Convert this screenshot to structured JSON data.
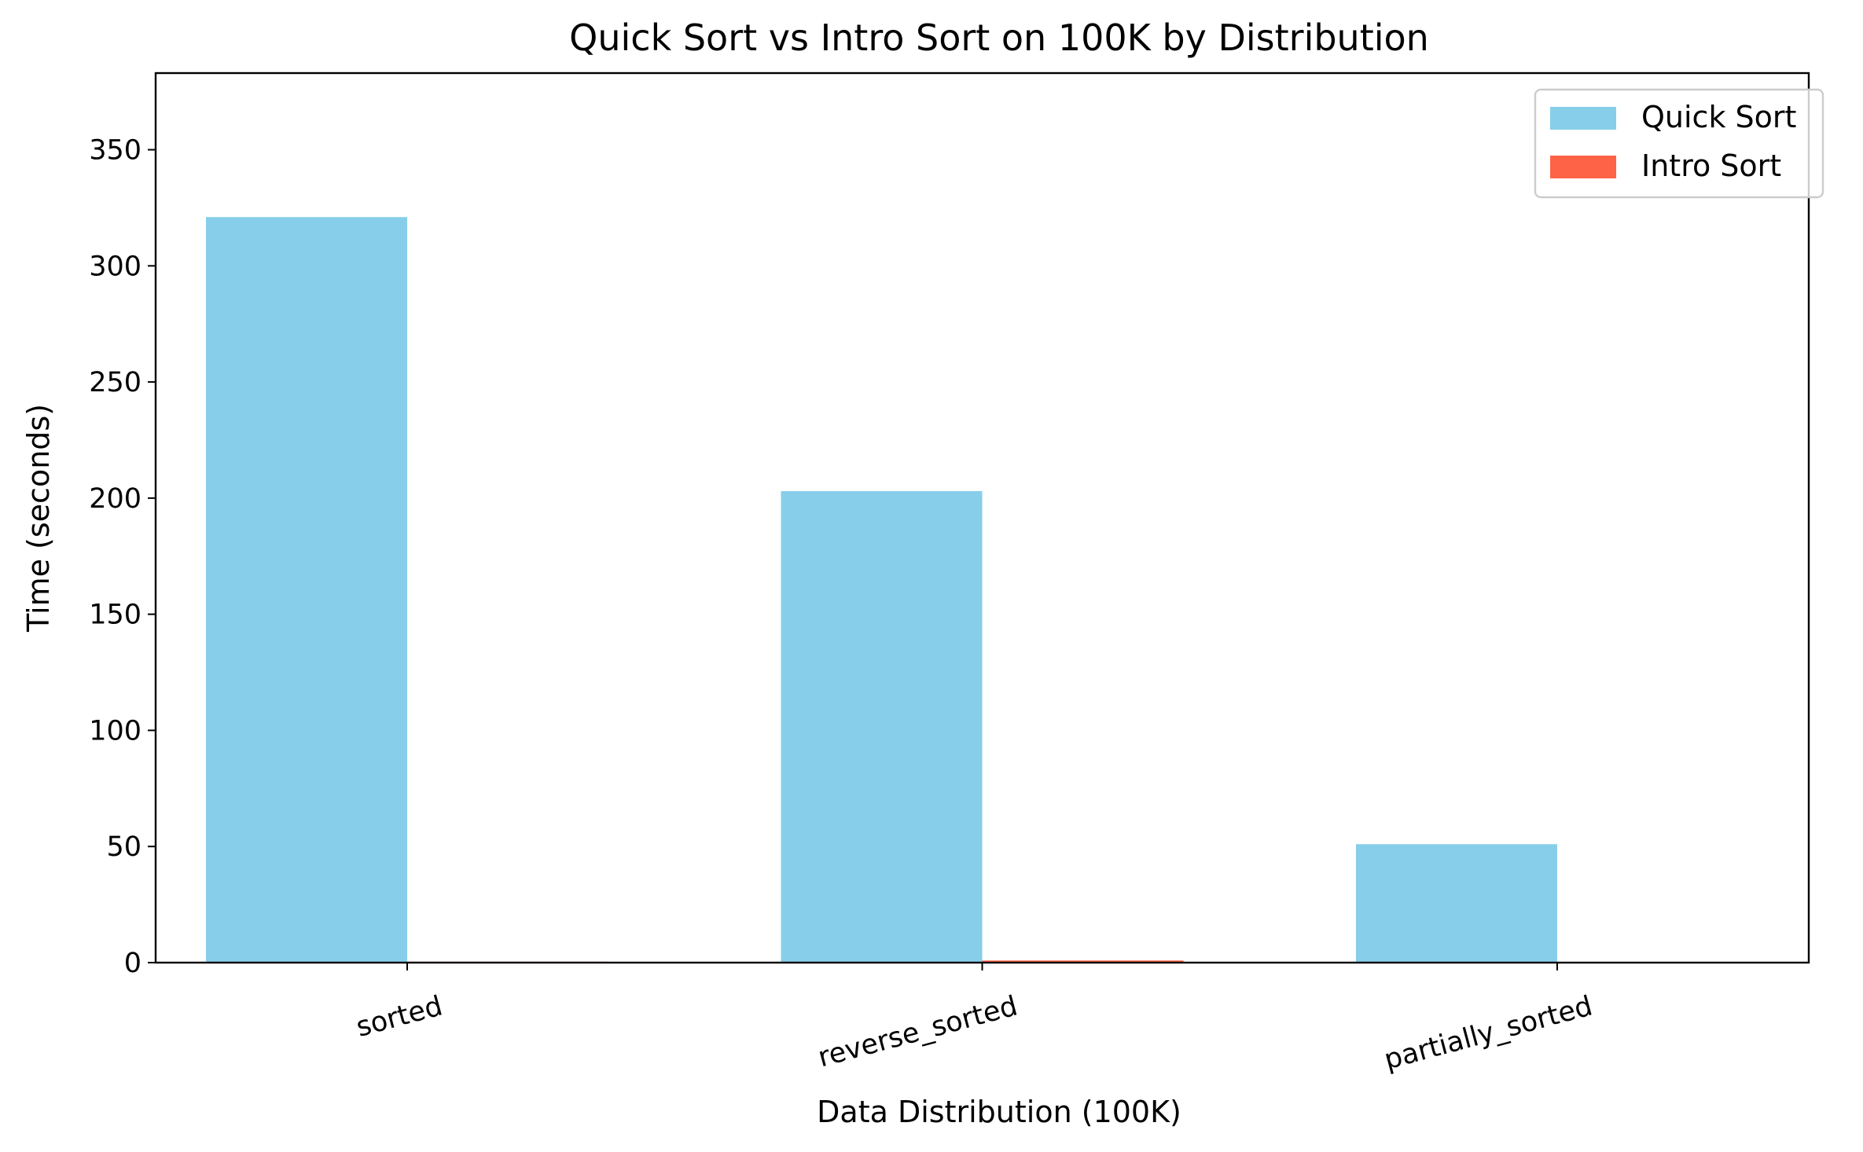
{
  "chart_data": {
    "type": "bar",
    "title": "Quick Sort vs Intro Sort on 100K by Distribution",
    "xlabel": "Data Distribution (100K)",
    "ylabel": "Time (seconds)",
    "categories": [
      "sorted",
      "reverse_sorted",
      "partially_sorted"
    ],
    "series": [
      {
        "name": "Quick Sort",
        "values": [
          321,
          203,
          51
        ],
        "color": "#87ceeb"
      },
      {
        "name": "Intro Sort",
        "values": [
          0.4,
          0.9,
          0.1
        ],
        "color": "#ff6347"
      }
    ],
    "ylim": [
      0,
      383
    ],
    "yticks": [
      0,
      50,
      100,
      150,
      200,
      250,
      300,
      350
    ],
    "grid": false,
    "legend_position": "top-right"
  }
}
